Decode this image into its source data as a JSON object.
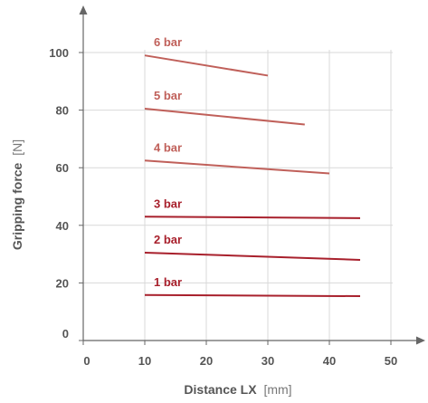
{
  "chart_data": {
    "type": "line",
    "xlabel": "Distance LX",
    "xlabel_unit": "[mm]",
    "ylabel": "Gripping force",
    "ylabel_unit": "[N]",
    "xlim": [
      0,
      50
    ],
    "ylim": [
      0,
      100
    ],
    "x_ticks": [
      0,
      10,
      20,
      30,
      40,
      50
    ],
    "y_ticks": [
      0,
      20,
      40,
      60,
      80,
      100
    ],
    "grid": true,
    "series": [
      {
        "name": "6 bar",
        "color": "#c0605a",
        "x": [
          10,
          30
        ],
        "y": [
          99,
          92
        ]
      },
      {
        "name": "5 bar",
        "color": "#c0605a",
        "x": [
          10,
          36
        ],
        "y": [
          80.5,
          75
        ]
      },
      {
        "name": "4 bar",
        "color": "#c0605a",
        "x": [
          10,
          40
        ],
        "y": [
          62.5,
          58
        ]
      },
      {
        "name": "3 bar",
        "color": "#a8202c",
        "x": [
          10,
          45
        ],
        "y": [
          43,
          42.5
        ]
      },
      {
        "name": "2 bar",
        "color": "#a8202c",
        "x": [
          10,
          45
        ],
        "y": [
          30.5,
          28
        ]
      },
      {
        "name": "1 bar",
        "color": "#a8202c",
        "x": [
          10,
          45
        ],
        "y": [
          15.8,
          15.4
        ]
      }
    ]
  }
}
